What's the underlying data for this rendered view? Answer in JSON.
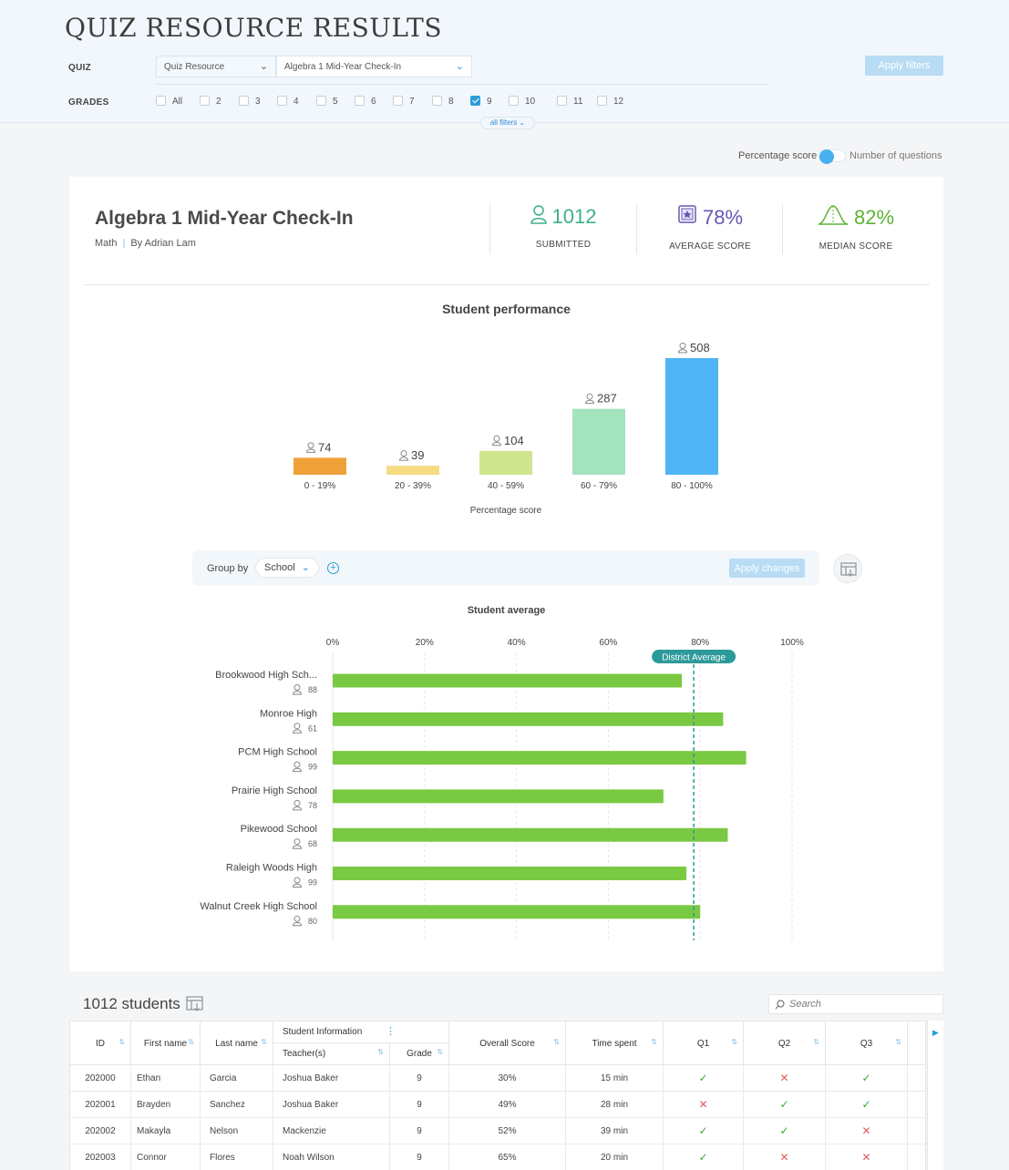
{
  "page": {
    "title": "QUIZ RESOURCE RESULTS"
  },
  "filters": {
    "quiz_label": "QUIZ",
    "quiz_type": "Quiz Resource",
    "quiz_name": "Algebra 1 Mid-Year Check-In",
    "grades_label": "GRADES",
    "grades": [
      {
        "label": "All",
        "checked": false
      },
      {
        "label": "2",
        "checked": false
      },
      {
        "label": "3",
        "checked": false
      },
      {
        "label": "4",
        "checked": false
      },
      {
        "label": "5",
        "checked": false
      },
      {
        "label": "6",
        "checked": false
      },
      {
        "label": "7",
        "checked": false
      },
      {
        "label": "8",
        "checked": false
      },
      {
        "label": "9",
        "checked": true
      },
      {
        "label": "10",
        "checked": false
      },
      {
        "label": "11",
        "checked": false
      },
      {
        "label": "12",
        "checked": false
      }
    ],
    "apply_label": "Apply filters",
    "all_filters_label": "all filters"
  },
  "toggle": {
    "left_label": "Percentage score",
    "right_label": "Number of questions",
    "selected": "left"
  },
  "quiz": {
    "name": "Algebra 1 Mid-Year Check-In",
    "subject": "Math",
    "author": "By Adrian Lam"
  },
  "stats": [
    {
      "value": "1012",
      "label": "SUBMITTED",
      "color": "#3fae8c",
      "icon": "user-icon"
    },
    {
      "value": "78%",
      "label": "AVERAGE SCORE",
      "color": "#6a55b5",
      "icon": "badge-icon"
    },
    {
      "value": "82%",
      "label": "MEDIAN SCORE",
      "color": "#5cb336",
      "icon": "bell-curve-icon"
    }
  ],
  "performance": {
    "title": "Student performance",
    "xlabel": "Percentage score",
    "chart_data": {
      "type": "bar",
      "categories": [
        "0 - 19%",
        "20 - 39%",
        "40 - 59%",
        "60 - 79%",
        "80 - 100%"
      ],
      "values": [
        74,
        39,
        104,
        287,
        508
      ],
      "colors": [
        "#f0a23a",
        "#f5db82",
        "#d1e58e",
        "#a3e3be",
        "#4fb5f5"
      ],
      "xlabel": "Percentage score"
    }
  },
  "group_by": {
    "label": "Group by",
    "value": "School",
    "apply_label": "Apply changes"
  },
  "average": {
    "title": "Student average",
    "district_label": "District Average",
    "chart_data": {
      "type": "bar",
      "orientation": "horizontal",
      "x_ticks": [
        "0%",
        "20%",
        "40%",
        "60%",
        "80%",
        "100%"
      ],
      "xlim": [
        0,
        100
      ],
      "district_average": 78,
      "schools": [
        {
          "name": "Brookwood High Sch...",
          "count": "88",
          "value": 76
        },
        {
          "name": "Monroe High",
          "count": "61",
          "value": 85
        },
        {
          "name": "PCM High School",
          "count": "99",
          "value": 90
        },
        {
          "name": "Prairie High School",
          "count": "78",
          "value": 72
        },
        {
          "name": "Pikewood School",
          "count": "68",
          "value": 86
        },
        {
          "name": "Raleigh Woods High",
          "count": "99",
          "value": 77
        },
        {
          "name": "Walnut Creek High School",
          "count": "80",
          "value": 80
        }
      ],
      "bar_color": "#7ac943",
      "district_color": "#2d9a9a"
    }
  },
  "table": {
    "count_label": "1012 students",
    "search_placeholder": "Search",
    "group_header": "Student Information",
    "headers": {
      "id": "ID",
      "first": "First name",
      "last": "Last name",
      "teacher": "Teacher(s)",
      "grade": "Grade",
      "score": "Overall Score",
      "time": "Time spent",
      "q1": "Q1",
      "q2": "Q2",
      "q3": "Q3"
    },
    "rows": [
      {
        "id": "202000",
        "first": "Ethan",
        "last": "Garcia",
        "teacher": "Joshua Baker",
        "grade": "9",
        "score": "30%",
        "time": "15 min",
        "q1": "✓",
        "q2": "✕",
        "q3": "✓"
      },
      {
        "id": "202001",
        "first": "Brayden",
        "last": "Sanchez",
        "teacher": "Joshua Baker",
        "grade": "9",
        "score": "49%",
        "time": "28 min",
        "q1": "✕",
        "q2": "✓",
        "q3": "✓"
      },
      {
        "id": "202002",
        "first": "Makayla",
        "last": "Nelson",
        "teacher": "Mackenzie",
        "grade": "9",
        "score": "52%",
        "time": "39 min",
        "q1": "✓",
        "q2": "✓",
        "q3": "✕"
      },
      {
        "id": "202003",
        "first": "Connor",
        "last": "Flores",
        "teacher": "Noah Wilson",
        "grade": "9",
        "score": "65%",
        "time": "20 min",
        "q1": "✓",
        "q2": "✕",
        "q3": "✕"
      }
    ]
  }
}
